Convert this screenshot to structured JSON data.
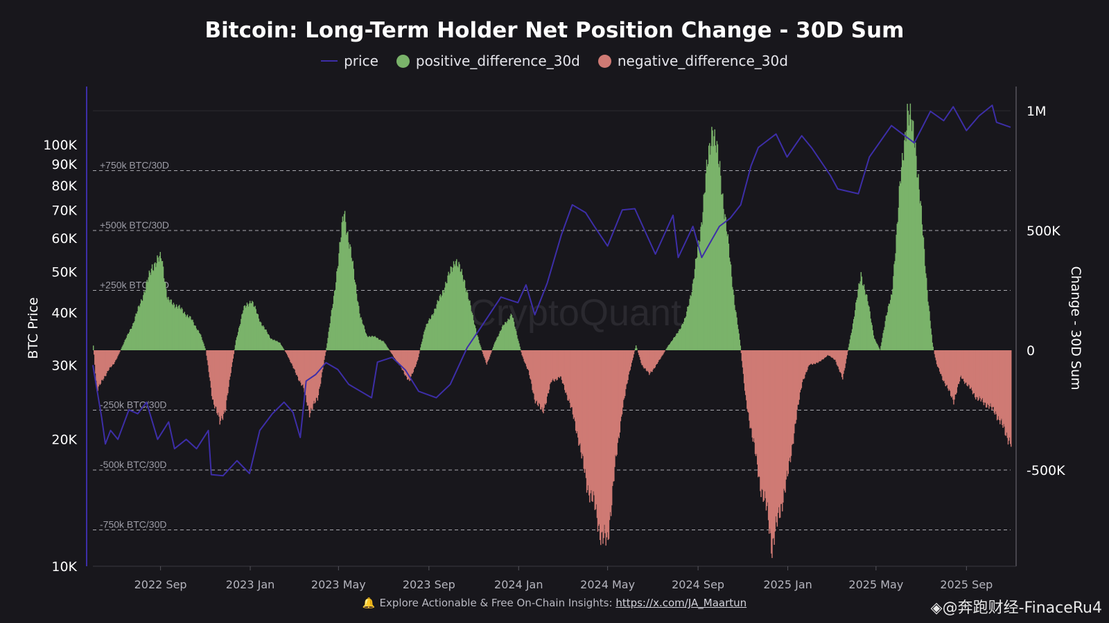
{
  "chart_data": {
    "type": "bar",
    "title": "Bitcoin: Long-Term Holder Net Position Change - 30D Sum",
    "ylabel_left": "BTC Price",
    "ylabel_right": "Change - 30D Sum",
    "left_axis": {
      "scale": "log",
      "ylim": [
        10000,
        140000
      ],
      "ticks": [
        [
          10000,
          "10K"
        ],
        [
          20000,
          "20K"
        ],
        [
          30000,
          "30K"
        ],
        [
          40000,
          "40K"
        ],
        [
          50000,
          "50K"
        ],
        [
          60000,
          "60K"
        ],
        [
          70000,
          "70K"
        ],
        [
          80000,
          "80K"
        ],
        [
          90000,
          "90K"
        ],
        [
          100000,
          "100K"
        ]
      ]
    },
    "right_axis": {
      "ylim": [
        -920000,
        1000000
      ],
      "ticks": [
        [
          1000000,
          "1M"
        ],
        [
          500000,
          "500K"
        ],
        [
          0,
          "0"
        ],
        [
          -500000,
          "-500K"
        ]
      ]
    },
    "reference_lines": [
      {
        "value": 750000,
        "label": "+750k BTC/30D"
      },
      {
        "value": 500000,
        "label": "+500k BTC/30D"
      },
      {
        "value": 250000,
        "label": "+250k BTC/30D"
      },
      {
        "value": -250000,
        "label": "-250k BTC/30D"
      },
      {
        "value": -500000,
        "label": "-500k BTC/30D"
      },
      {
        "value": -750000,
        "label": "-750k BTC/30D"
      }
    ],
    "x_ticks": [
      [
        "2022-09-01",
        "2022 Sep"
      ],
      [
        "2023-01-01",
        "2023 Jan"
      ],
      [
        "2023-05-01",
        "2023 May"
      ],
      [
        "2023-09-01",
        "2023 Sep"
      ],
      [
        "2024-01-01",
        "2024 Jan"
      ],
      [
        "2024-05-01",
        "2024 May"
      ],
      [
        "2024-09-01",
        "2024 Sep"
      ],
      [
        "2025-01-01",
        "2025 Jan"
      ],
      [
        "2025-05-01",
        "2025 May"
      ],
      [
        "2025-09-01",
        "2025 Sep"
      ]
    ],
    "xlim": [
      "2022-06-01",
      "2025-10-31"
    ],
    "series": [
      {
        "name": "price",
        "kind": "line",
        "color": "#3d2ea8",
        "axis": "left",
        "points": [
          [
            "2022-06-01",
            30000
          ],
          [
            "2022-06-13",
            22500
          ],
          [
            "2022-06-18",
            19500
          ],
          [
            "2022-06-25",
            21000
          ],
          [
            "2022-07-05",
            20000
          ],
          [
            "2022-07-20",
            23500
          ],
          [
            "2022-08-01",
            23000
          ],
          [
            "2022-08-13",
            24500
          ],
          [
            "2022-08-28",
            20000
          ],
          [
            "2022-09-12",
            22000
          ],
          [
            "2022-09-20",
            19000
          ],
          [
            "2022-10-06",
            20000
          ],
          [
            "2022-10-20",
            19000
          ],
          [
            "2022-11-05",
            21000
          ],
          [
            "2022-11-09",
            16500
          ],
          [
            "2022-11-25",
            16400
          ],
          [
            "2022-12-14",
            17800
          ],
          [
            "2022-12-31",
            16600
          ],
          [
            "2023-01-14",
            21000
          ],
          [
            "2023-01-31",
            23000
          ],
          [
            "2023-02-16",
            24500
          ],
          [
            "2023-02-28",
            23200
          ],
          [
            "2023-03-10",
            20200
          ],
          [
            "2023-03-18",
            27500
          ],
          [
            "2023-03-31",
            28500
          ],
          [
            "2023-04-14",
            30400
          ],
          [
            "2023-04-30",
            29300
          ],
          [
            "2023-05-15",
            27000
          ],
          [
            "2023-06-15",
            25100
          ],
          [
            "2023-06-23",
            30500
          ],
          [
            "2023-07-13",
            31300
          ],
          [
            "2023-07-31",
            29200
          ],
          [
            "2023-08-18",
            26000
          ],
          [
            "2023-09-11",
            25100
          ],
          [
            "2023-09-30",
            27000
          ],
          [
            "2023-10-23",
            33000
          ],
          [
            "2023-11-09",
            36500
          ],
          [
            "2023-12-08",
            43500
          ],
          [
            "2023-12-31",
            42200
          ],
          [
            "2024-01-11",
            46500
          ],
          [
            "2024-01-23",
            39500
          ],
          [
            "2024-02-09",
            47000
          ],
          [
            "2024-02-28",
            61000
          ],
          [
            "2024-03-14",
            72000
          ],
          [
            "2024-04-01",
            69000
          ],
          [
            "2024-04-13",
            64000
          ],
          [
            "2024-05-01",
            57500
          ],
          [
            "2024-05-21",
            70000
          ],
          [
            "2024-06-07",
            70500
          ],
          [
            "2024-07-05",
            55000
          ],
          [
            "2024-07-29",
            68000
          ],
          [
            "2024-08-05",
            54000
          ],
          [
            "2024-08-25",
            64000
          ],
          [
            "2024-09-06",
            54000
          ],
          [
            "2024-09-30",
            64000
          ],
          [
            "2024-10-15",
            67000
          ],
          [
            "2024-10-29",
            72000
          ],
          [
            "2024-11-12",
            89000
          ],
          [
            "2024-11-22",
            98500
          ],
          [
            "2024-12-16",
            106000
          ],
          [
            "2024-12-31",
            93500
          ],
          [
            "2025-01-20",
            105000
          ],
          [
            "2025-02-03",
            98000
          ],
          [
            "2025-02-28",
            84500
          ],
          [
            "2025-03-10",
            78500
          ],
          [
            "2025-04-07",
            76500
          ],
          [
            "2025-04-22",
            93500
          ],
          [
            "2025-05-22",
            111000
          ],
          [
            "2025-06-22",
            101000
          ],
          [
            "2025-07-14",
            120000
          ],
          [
            "2025-08-01",
            114000
          ],
          [
            "2025-08-14",
            123000
          ],
          [
            "2025-09-01",
            108000
          ],
          [
            "2025-09-18",
            117000
          ],
          [
            "2025-10-06",
            124000
          ],
          [
            "2025-10-12",
            113000
          ],
          [
            "2025-10-31",
            110000
          ]
        ]
      },
      {
        "name": "positive_difference_30d",
        "kind": "bar",
        "color": "#7ab36a",
        "axis": "right"
      },
      {
        "name": "negative_difference_30d",
        "kind": "bar",
        "color": "#cf7a74",
        "axis": "right"
      }
    ],
    "net_change_profile": [
      [
        "2022-06-01",
        20000
      ],
      [
        "2022-06-06",
        -170000
      ],
      [
        "2022-06-14",
        -120000
      ],
      [
        "2022-06-22",
        -80000
      ],
      [
        "2022-06-28",
        -60000
      ],
      [
        "2022-07-05",
        -20000
      ],
      [
        "2022-07-14",
        40000
      ],
      [
        "2022-07-25",
        110000
      ],
      [
        "2022-08-10",
        250000
      ],
      [
        "2022-08-20",
        350000
      ],
      [
        "2022-09-02",
        390000
      ],
      [
        "2022-09-10",
        210000
      ],
      [
        "2022-09-25",
        180000
      ],
      [
        "2022-10-12",
        130000
      ],
      [
        "2022-10-24",
        70000
      ],
      [
        "2022-11-01",
        0
      ],
      [
        "2022-11-10",
        -200000
      ],
      [
        "2022-11-20",
        -300000
      ],
      [
        "2022-11-28",
        -240000
      ],
      [
        "2022-12-06",
        -70000
      ],
      [
        "2022-12-12",
        40000
      ],
      [
        "2022-12-22",
        170000
      ],
      [
        "2023-01-02",
        210000
      ],
      [
        "2023-01-14",
        120000
      ],
      [
        "2023-01-28",
        50000
      ],
      [
        "2023-02-10",
        30000
      ],
      [
        "2023-02-20",
        -20000
      ],
      [
        "2023-03-01",
        -80000
      ],
      [
        "2023-03-14",
        -160000
      ],
      [
        "2023-03-22",
        -260000
      ],
      [
        "2023-04-02",
        -200000
      ],
      [
        "2023-04-14",
        10000
      ],
      [
        "2023-04-24",
        220000
      ],
      [
        "2023-05-08",
        580000
      ],
      [
        "2023-05-18",
        390000
      ],
      [
        "2023-05-30",
        140000
      ],
      [
        "2023-06-08",
        60000
      ],
      [
        "2023-06-20",
        55000
      ],
      [
        "2023-07-01",
        35000
      ],
      [
        "2023-07-12",
        -15000
      ],
      [
        "2023-07-22",
        -60000
      ],
      [
        "2023-08-05",
        -130000
      ],
      [
        "2023-08-16",
        -40000
      ],
      [
        "2023-08-26",
        90000
      ],
      [
        "2023-09-10",
        180000
      ],
      [
        "2023-09-25",
        290000
      ],
      [
        "2023-10-06",
        380000
      ],
      [
        "2023-10-18",
        300000
      ],
      [
        "2023-10-30",
        140000
      ],
      [
        "2023-11-08",
        30000
      ],
      [
        "2023-11-18",
        -60000
      ],
      [
        "2023-11-30",
        40000
      ],
      [
        "2023-12-10",
        100000
      ],
      [
        "2023-12-22",
        150000
      ],
      [
        "2023-12-31",
        40000
      ],
      [
        "2024-01-05",
        -20000
      ],
      [
        "2024-01-14",
        -90000
      ],
      [
        "2024-01-22",
        -200000
      ],
      [
        "2024-02-02",
        -260000
      ],
      [
        "2024-02-14",
        -130000
      ],
      [
        "2024-02-26",
        -110000
      ],
      [
        "2024-03-10",
        -220000
      ],
      [
        "2024-03-22",
        -370000
      ],
      [
        "2024-04-02",
        -560000
      ],
      [
        "2024-04-12",
        -640000
      ],
      [
        "2024-04-22",
        -780000
      ],
      [
        "2024-04-30",
        -800000
      ],
      [
        "2024-05-10",
        -500000
      ],
      [
        "2024-05-20",
        -250000
      ],
      [
        "2024-05-30",
        -90000
      ],
      [
        "2024-06-08",
        20000
      ],
      [
        "2024-06-16",
        -60000
      ],
      [
        "2024-06-26",
        -100000
      ],
      [
        "2024-07-06",
        -60000
      ],
      [
        "2024-07-14",
        -20000
      ],
      [
        "2024-07-22",
        20000
      ],
      [
        "2024-08-01",
        60000
      ],
      [
        "2024-08-14",
        130000
      ],
      [
        "2024-08-24",
        270000
      ],
      [
        "2024-09-03",
        480000
      ],
      [
        "2024-09-12",
        740000
      ],
      [
        "2024-09-20",
        940000
      ],
      [
        "2024-09-30",
        750000
      ],
      [
        "2024-10-10",
        480000
      ],
      [
        "2024-10-20",
        200000
      ],
      [
        "2024-10-28",
        20000
      ],
      [
        "2024-11-04",
        -200000
      ],
      [
        "2024-11-14",
        -370000
      ],
      [
        "2024-11-24",
        -560000
      ],
      [
        "2024-12-04",
        -680000
      ],
      [
        "2024-12-10",
        -820000
      ],
      [
        "2024-12-20",
        -680000
      ],
      [
        "2024-12-31",
        -530000
      ],
      [
        "2025-01-10",
        -320000
      ],
      [
        "2025-01-20",
        -130000
      ],
      [
        "2025-01-30",
        -60000
      ],
      [
        "2025-02-12",
        -50000
      ],
      [
        "2025-02-24",
        -20000
      ],
      [
        "2025-03-06",
        -40000
      ],
      [
        "2025-03-16",
        -120000
      ],
      [
        "2025-03-22",
        -20000
      ],
      [
        "2025-03-30",
        110000
      ],
      [
        "2025-04-10",
        320000
      ],
      [
        "2025-04-20",
        190000
      ],
      [
        "2025-04-28",
        50000
      ],
      [
        "2025-05-06",
        0
      ],
      [
        "2025-05-14",
        140000
      ],
      [
        "2025-05-22",
        230000
      ],
      [
        "2025-06-02",
        680000
      ],
      [
        "2025-06-12",
        1000000
      ],
      [
        "2025-06-22",
        890000
      ],
      [
        "2025-06-30",
        600000
      ],
      [
        "2025-07-10",
        220000
      ],
      [
        "2025-07-16",
        30000
      ],
      [
        "2025-07-22",
        -60000
      ],
      [
        "2025-08-01",
        -130000
      ],
      [
        "2025-08-14",
        -210000
      ],
      [
        "2025-08-24",
        -110000
      ],
      [
        "2025-09-03",
        -150000
      ],
      [
        "2025-09-15",
        -200000
      ],
      [
        "2025-09-30",
        -230000
      ],
      [
        "2025-10-10",
        -260000
      ],
      [
        "2025-10-20",
        -320000
      ],
      [
        "2025-10-31",
        -390000
      ]
    ]
  },
  "legend": {
    "price": "price",
    "positive": "positive_difference_30d",
    "negative": "negative_difference_30d"
  },
  "footer": {
    "text": "Explore Actionable & Free On-Chain Insights:",
    "link": "https://x.com/JA_Maartun"
  },
  "watermark": "CryptoQuant",
  "corner_watermark": "◈@奔跑财经-FinaceRu4"
}
